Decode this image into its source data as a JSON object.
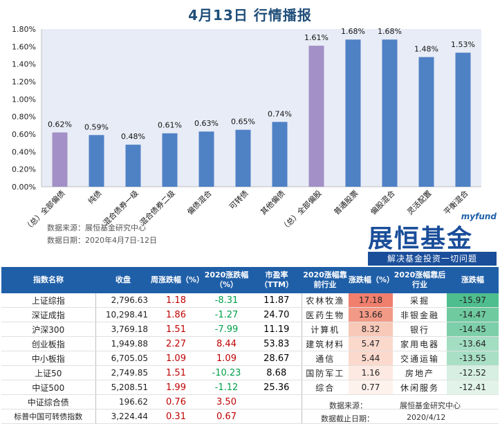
{
  "title": "4月13日 行情播报",
  "chart_data": {
    "type": "bar",
    "categories": [
      "（总）全部偏债",
      "纯债",
      "混合债券一级",
      "混合债券二级",
      "偏债混合",
      "可转债",
      "其他偏债",
      "（总）全部偏股",
      "普通股票",
      "偏股混合",
      "灵活配置",
      "平衡混合"
    ],
    "values": [
      0.62,
      0.59,
      0.48,
      0.61,
      0.63,
      0.65,
      0.74,
      1.61,
      1.68,
      1.68,
      1.48,
      1.53
    ],
    "value_labels": [
      "0.62%",
      "0.59%",
      "0.48%",
      "0.61%",
      "0.63%",
      "0.65%",
      "0.74%",
      "1.61%",
      "1.68%",
      "1.68%",
      "1.48%",
      "1.53%"
    ],
    "bar_colors": [
      "#a390c6",
      "#4f81c5",
      "#4f81c5",
      "#4f81c5",
      "#4f81c5",
      "#4f81c5",
      "#4f81c5",
      "#a390c6",
      "#4f81c5",
      "#4f81c5",
      "#4f81c5",
      "#4f81c5"
    ],
    "yticks": [
      "0.00%",
      "0.20%",
      "0.40%",
      "0.60%",
      "0.80%",
      "1.00%",
      "1.20%",
      "1.40%",
      "1.60%",
      "1.80%"
    ],
    "ylim": [
      0,
      1.8
    ],
    "plot_background": "#e8ecf6",
    "grid": false
  },
  "source": {
    "line1": "数据来源：展恒基金研究中心",
    "line2": "数据日期：2020年4月7日-12日"
  },
  "logo": {
    "small": "myfund",
    "main": "展恒基金",
    "slogan": "解决基金投资一切问题"
  },
  "table": {
    "headers": {
      "name": "指数名称",
      "close": "收盘",
      "week": "周涨跌幅（%）",
      "ytd": "2020涨跌幅（%）",
      "pe": "市盈率（TTM）",
      "top_ind": "2020涨幅靠前行业",
      "top_pct": "涨跌幅（%）",
      "bot_ind": "2020涨幅靠后行业",
      "bot_pct": "涨跌幅"
    },
    "rows": [
      {
        "name": "上证综指",
        "close": "2,796.63",
        "week": "1.18",
        "ytd": "-8.31",
        "pe": "11.87",
        "top_ind": "农林牧渔",
        "top_pct": "17.18",
        "bot_ind": "采掘",
        "bot_pct": "-15.97"
      },
      {
        "name": "深证成指",
        "close": "10,298.41",
        "week": "1.86",
        "ytd": "-1.27",
        "pe": "24.70",
        "top_ind": "医药生物",
        "top_pct": "13.66",
        "bot_ind": "非银金融",
        "bot_pct": "-14.47"
      },
      {
        "name": "沪深300",
        "close": "3,769.18",
        "week": "1.51",
        "ytd": "-7.99",
        "pe": "11.19",
        "top_ind": "计算机",
        "top_pct": "8.32",
        "bot_ind": "银行",
        "bot_pct": "-14.45"
      },
      {
        "name": "创业板指",
        "close": "1,949.88",
        "week": "2.27",
        "ytd": "8.44",
        "pe": "53.83",
        "top_ind": "建筑材料",
        "top_pct": "5.47",
        "bot_ind": "家用电器",
        "bot_pct": "-13.64"
      },
      {
        "name": "中小板指",
        "close": "6,705.05",
        "week": "1.09",
        "ytd": "1.09",
        "pe": "28.67",
        "top_ind": "通信",
        "top_pct": "5.44",
        "bot_ind": "交通运输",
        "bot_pct": "-13.55"
      },
      {
        "name": "上证50",
        "close": "2,749.85",
        "week": "1.51",
        "ytd": "-10.23",
        "pe": "8.68",
        "top_ind": "国防军工",
        "top_pct": "1.16",
        "bot_ind": "房地产",
        "bot_pct": "-12.52"
      },
      {
        "name": "中证500",
        "close": "5,208.51",
        "week": "1.99",
        "ytd": "-1.12",
        "pe": "25.36",
        "top_ind": "综合",
        "top_pct": "0.77",
        "bot_ind": "休闲服务",
        "bot_pct": "-12.41"
      },
      {
        "name": "中证综合债",
        "close": "196.62",
        "week": "0.76",
        "ytd": "3.50",
        "pe": "",
        "top_ind": "",
        "top_pct": "",
        "bot_ind": "",
        "bot_pct": ""
      },
      {
        "name": "标普中国可转债指数",
        "close": "3,224.44",
        "week": "0.31",
        "ytd": "0.67",
        "pe": "",
        "top_ind": "",
        "top_pct": "",
        "bot_ind": "",
        "bot_pct": ""
      }
    ],
    "top_colors": [
      "#f07f6e",
      "#f39a86",
      "#f8c9b9",
      "#fbd8cc",
      "#fbd9cd",
      "#fde9e1",
      "#fef2ed"
    ],
    "bot_colors": [
      "#4fbe8e",
      "#6fcaa0",
      "#7dcfaa",
      "#a3ddc2",
      "#a8dfc5",
      "#d6efe2",
      "#e2f3ea"
    ],
    "footer_source_label": "数据来源：",
    "footer_source_value": "展恒基金研究中心",
    "footer_date_label": "数据截止日期：",
    "footer_date_value": "2020/4/12"
  }
}
